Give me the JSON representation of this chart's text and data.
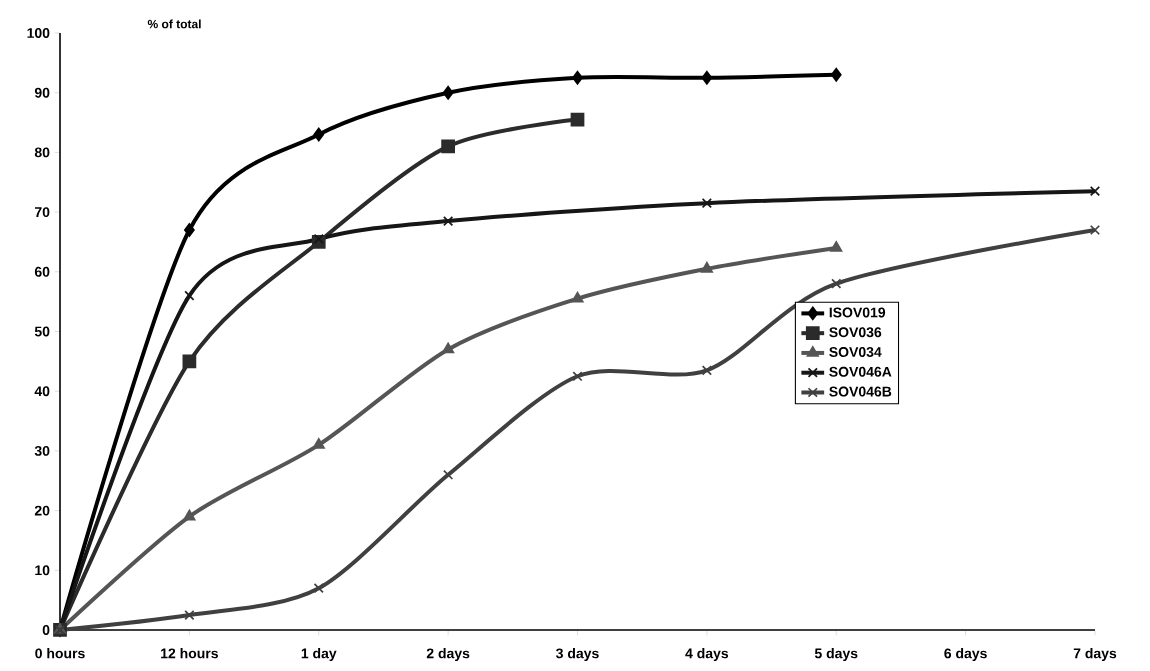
{
  "chart_data": {
    "type": "line",
    "ylabel": "% of total",
    "categories": [
      "0 hours",
      "12 hours",
      "1 day",
      "2 days",
      "3 days",
      "4 days",
      "5 days",
      "6 days",
      "7 days"
    ],
    "series": [
      {
        "name": "ISOV019",
        "color": "#000000",
        "marker": "diamond",
        "values": [
          0,
          67,
          83,
          90,
          92.5,
          92.5,
          93,
          null,
          null
        ]
      },
      {
        "name": "SOV036",
        "color": "#2b2b2b",
        "marker": "square",
        "values": [
          0,
          45,
          65,
          81,
          85.5,
          null,
          null,
          null,
          null
        ]
      },
      {
        "name": "SOV034",
        "color": "#555555",
        "marker": "triangle",
        "values": [
          0,
          19,
          31,
          47,
          55.5,
          60.5,
          64,
          null,
          null
        ]
      },
      {
        "name": "SOV046A",
        "color": "#161616",
        "marker": "cross",
        "values": [
          0,
          56,
          65.5,
          68.5,
          null,
          71.5,
          null,
          null,
          73.5
        ]
      },
      {
        "name": "SOV046B",
        "color": "#404040",
        "marker": "cross",
        "values": [
          0,
          2.5,
          7,
          26,
          42.5,
          43.5,
          58,
          null,
          67
        ]
      }
    ],
    "ylim": [
      0,
      100
    ],
    "yticks": [
      0,
      10,
      20,
      30,
      40,
      50,
      60,
      70,
      80,
      90,
      100
    ],
    "grid": false,
    "legend": "right",
    "line_style": "solid"
  }
}
